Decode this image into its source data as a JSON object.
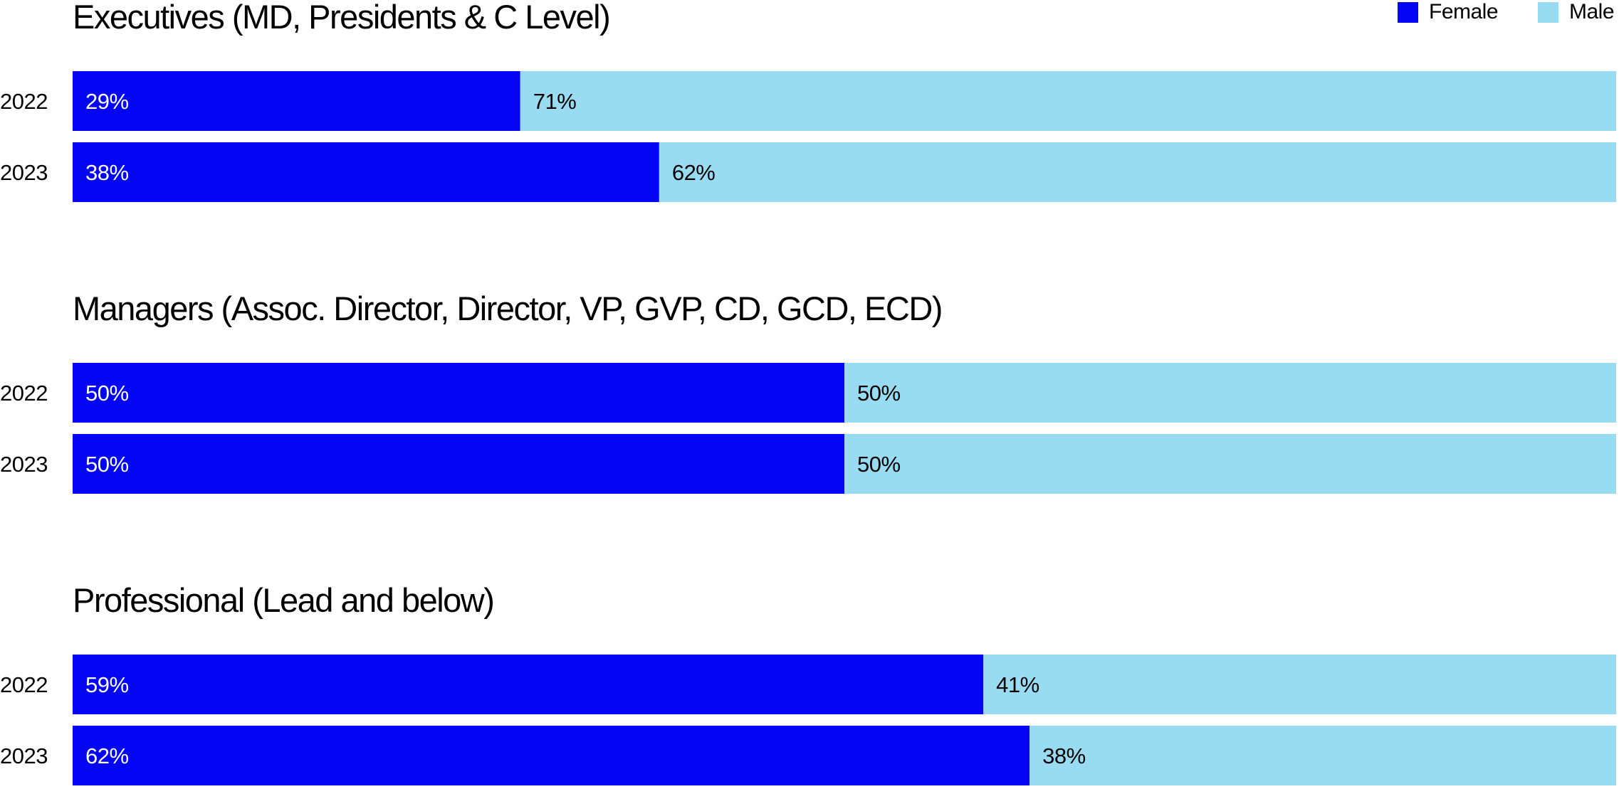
{
  "legend": {
    "items": [
      {
        "label": "Female",
        "color": "#0505f5"
      },
      {
        "label": "Male",
        "color": "#99dcf1"
      }
    ]
  },
  "chart_data": [
    {
      "type": "bar",
      "orientation": "horizontal",
      "stacked": true,
      "title": "Executives (MD, Presidents & C Level)",
      "categories": [
        "2022",
        "2023"
      ],
      "series": [
        {
          "name": "Female",
          "values": [
            29,
            38
          ],
          "labels": [
            "29%",
            "38%"
          ]
        },
        {
          "name": "Male",
          "values": [
            71,
            62
          ],
          "labels": [
            "71%",
            "62%"
          ]
        }
      ],
      "xlim": [
        0,
        100
      ]
    },
    {
      "type": "bar",
      "orientation": "horizontal",
      "stacked": true,
      "title": "Managers (Assoc. Director, Director, VP, GVP, CD, GCD, ECD)",
      "categories": [
        "2022",
        "2023"
      ],
      "series": [
        {
          "name": "Female",
          "values": [
            50,
            50
          ],
          "labels": [
            "50%",
            "50%"
          ]
        },
        {
          "name": "Male",
          "values": [
            50,
            50
          ],
          "labels": [
            "50%",
            "50%"
          ]
        }
      ],
      "xlim": [
        0,
        100
      ]
    },
    {
      "type": "bar",
      "orientation": "horizontal",
      "stacked": true,
      "title": "Professional (Lead and below)",
      "categories": [
        "2022",
        "2023"
      ],
      "series": [
        {
          "name": "Female",
          "values": [
            59,
            62
          ],
          "labels": [
            "59%",
            "62%"
          ]
        },
        {
          "name": "Male",
          "values": [
            41,
            38
          ],
          "labels": [
            "41%",
            "38%"
          ]
        }
      ],
      "xlim": [
        0,
        100
      ]
    }
  ]
}
